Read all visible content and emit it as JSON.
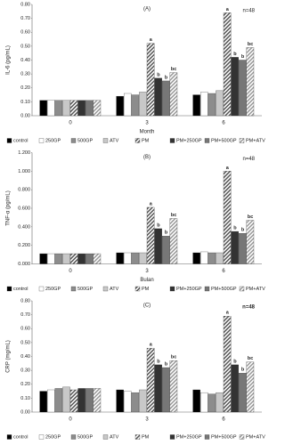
{
  "chart_data": [
    {
      "type": "bar",
      "title": "(A)",
      "annotation": "n=48",
      "y_label": "IL-6 (pg/mL)",
      "x_label": "Month",
      "categories": [
        "0",
        "3",
        "6"
      ],
      "ylim": [
        0,
        0.8
      ],
      "yticks": [
        {
          "value": 0,
          "label": "0.00"
        },
        {
          "value": 0.1,
          "label": "0.10"
        },
        {
          "value": 0.2,
          "label": "0.20"
        },
        {
          "value": 0.3,
          "label": "0.30"
        },
        {
          "value": 0.4,
          "label": "0.40"
        },
        {
          "value": 0.5,
          "label": "0.50"
        },
        {
          "value": 0.6,
          "label": "0.60"
        },
        {
          "value": 0.7,
          "label": "0.70"
        },
        {
          "value": 0.8,
          "label": "0.80"
        }
      ],
      "series": [
        {
          "name": "control",
          "color": "#000000",
          "hatch": false,
          "values": [
            0.11,
            0.14,
            0.15
          ]
        },
        {
          "name": "250GP",
          "color": "#ffffff",
          "hatch": false,
          "values": [
            0.11,
            0.16,
            0.17
          ]
        },
        {
          "name": "500GP",
          "color": "#8c8c8c",
          "hatch": false,
          "values": [
            0.11,
            0.15,
            0.16
          ]
        },
        {
          "name": "ATV",
          "color": "#c8c8c8",
          "hatch": false,
          "values": [
            0.11,
            0.17,
            0.18
          ]
        },
        {
          "name": "PM",
          "color": "#555555",
          "hatch": true,
          "values": [
            0.11,
            0.52,
            0.74
          ],
          "letters": [
            null,
            "a",
            "a"
          ]
        },
        {
          "name": "PM+250GP",
          "color": "#333333",
          "hatch": false,
          "values": [
            0.11,
            0.27,
            0.42
          ],
          "letters": [
            null,
            "b",
            "b"
          ]
        },
        {
          "name": "PM+500GP",
          "color": "#777777",
          "hatch": false,
          "values": [
            0.11,
            0.25,
            0.4
          ],
          "letters": [
            null,
            "b",
            "b"
          ]
        },
        {
          "name": "PM+ATV",
          "color": "#999999",
          "hatch": true,
          "values": [
            0.11,
            0.31,
            0.49
          ],
          "letters": [
            null,
            "bc",
            "bc"
          ]
        }
      ]
    },
    {
      "type": "bar",
      "title": "(B)",
      "annotation": "n=48",
      "y_label": "TNF-α (pg/mL)",
      "x_label": "Bulan",
      "categories": [
        "0",
        "3",
        "6"
      ],
      "ylim": [
        0,
        1.2
      ],
      "yticks": [
        {
          "value": 0,
          "label": "0.000"
        },
        {
          "value": 0.2,
          "label": "0.200"
        },
        {
          "value": 0.4,
          "label": "0.400"
        },
        {
          "value": 0.6,
          "label": "0.600"
        },
        {
          "value": 0.8,
          "label": "0.800"
        },
        {
          "value": 1.0,
          "label": "1.000"
        },
        {
          "value": 1.2,
          "label": "1.200"
        }
      ],
      "series": [
        {
          "name": "control",
          "color": "#000000",
          "hatch": false,
          "values": [
            0.11,
            0.12,
            0.12
          ]
        },
        {
          "name": "250GP",
          "color": "#ffffff",
          "hatch": false,
          "values": [
            0.11,
            0.12,
            0.13
          ]
        },
        {
          "name": "500GP",
          "color": "#8c8c8c",
          "hatch": false,
          "values": [
            0.11,
            0.12,
            0.12
          ]
        },
        {
          "name": "ATV",
          "color": "#c8c8c8",
          "hatch": false,
          "values": [
            0.11,
            0.12,
            0.12
          ]
        },
        {
          "name": "PM",
          "color": "#555555",
          "hatch": true,
          "values": [
            0.11,
            0.61,
            1.0
          ],
          "letters": [
            null,
            "a",
            "a"
          ]
        },
        {
          "name": "PM+250GP",
          "color": "#333333",
          "hatch": false,
          "values": [
            0.11,
            0.38,
            0.35
          ],
          "letters": [
            null,
            "b",
            "b"
          ]
        },
        {
          "name": "PM+500GP",
          "color": "#777777",
          "hatch": false,
          "values": [
            0.11,
            0.3,
            0.33
          ],
          "letters": [
            null,
            "b",
            "b"
          ]
        },
        {
          "name": "PM+ATV",
          "color": "#999999",
          "hatch": true,
          "values": [
            0.11,
            0.49,
            0.47
          ],
          "letters": [
            null,
            "bc",
            "bc"
          ]
        }
      ]
    },
    {
      "type": "bar",
      "title": "(C)",
      "annotation": "n=48",
      "y_label": "CRP (mg/mL)",
      "categories": [
        "0",
        "3",
        "6"
      ],
      "ylim": [
        0,
        0.8
      ],
      "yticks": [
        {
          "value": 0,
          "label": "0.00"
        },
        {
          "value": 0.1,
          "label": "0.10"
        },
        {
          "value": 0.2,
          "label": "0.20"
        },
        {
          "value": 0.3,
          "label": "0.30"
        },
        {
          "value": 0.4,
          "label": "0.40"
        },
        {
          "value": 0.5,
          "label": "0.50"
        },
        {
          "value": 0.6,
          "label": "0.60"
        },
        {
          "value": 0.7,
          "label": "0.70"
        },
        {
          "value": 0.8,
          "label": "0.80"
        }
      ],
      "series": [
        {
          "name": "control",
          "color": "#000000",
          "hatch": false,
          "values": [
            0.15,
            0.16,
            0.16
          ]
        },
        {
          "name": "250GP",
          "color": "#ffffff",
          "hatch": false,
          "values": [
            0.16,
            0.15,
            0.14
          ]
        },
        {
          "name": "500GP",
          "color": "#8c8c8c",
          "hatch": false,
          "values": [
            0.17,
            0.14,
            0.13
          ]
        },
        {
          "name": "ATV",
          "color": "#c8c8c8",
          "hatch": false,
          "values": [
            0.18,
            0.16,
            0.14
          ]
        },
        {
          "name": "PM",
          "color": "#555555",
          "hatch": true,
          "values": [
            0.16,
            0.46,
            0.69
          ],
          "letters": [
            null,
            "a",
            "a"
          ]
        },
        {
          "name": "PM+250GP",
          "color": "#333333",
          "hatch": false,
          "values": [
            0.17,
            0.34,
            0.34
          ],
          "letters": [
            null,
            "b",
            "b"
          ]
        },
        {
          "name": "PM+500GP",
          "color": "#777777",
          "hatch": false,
          "values": [
            0.17,
            0.32,
            0.28
          ],
          "letters": [
            null,
            "b",
            "b"
          ]
        },
        {
          "name": "PM+ATV",
          "color": "#999999",
          "hatch": true,
          "values": [
            0.17,
            0.37,
            0.36
          ],
          "letters": [
            null,
            "bc",
            "bc"
          ]
        }
      ]
    }
  ]
}
